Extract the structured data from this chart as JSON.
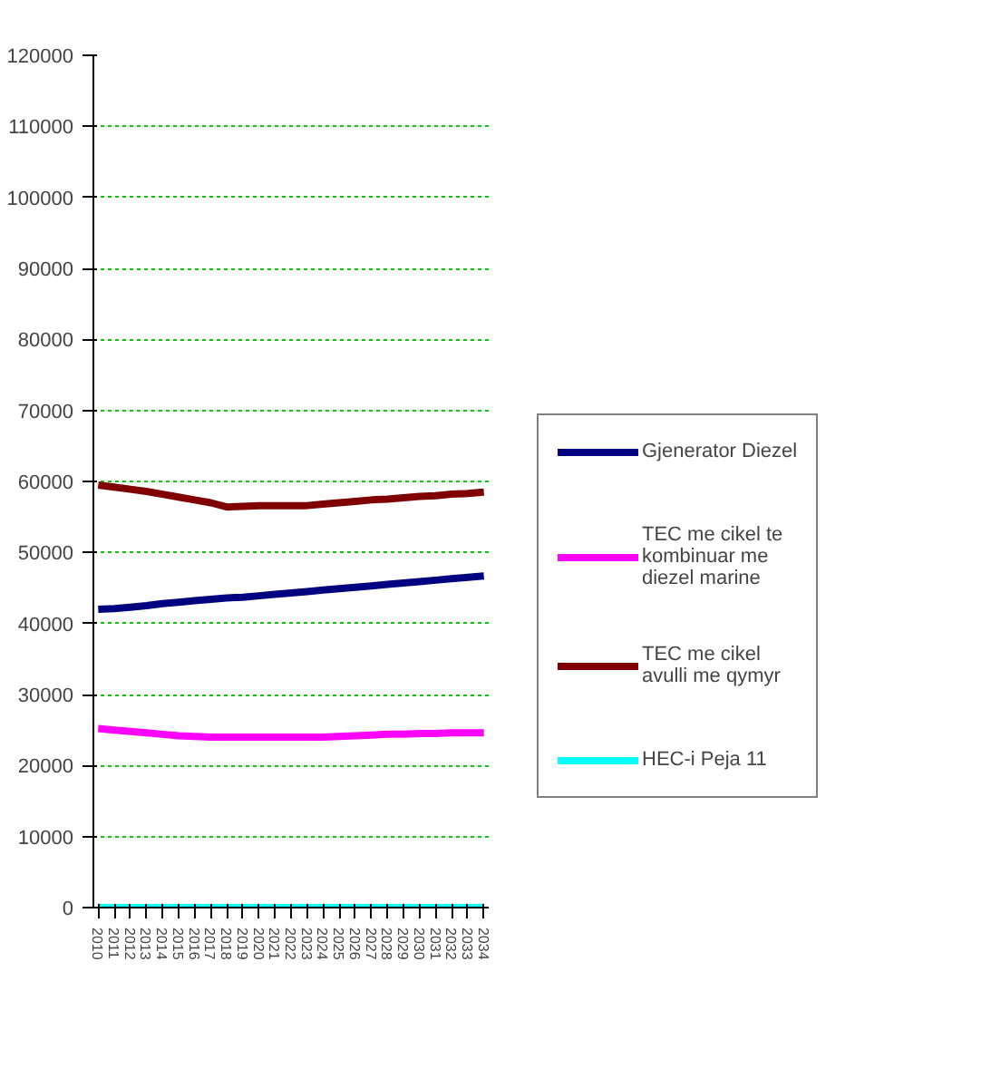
{
  "chart_data": {
    "type": "line",
    "categories": [
      "2010",
      "2011",
      "2012",
      "2013",
      "2014",
      "2015",
      "2016",
      "2017",
      "2018",
      "2019",
      "2020",
      "2021",
      "2022",
      "2023",
      "2024",
      "2025",
      "2026",
      "2027",
      "2028",
      "2029",
      "2030",
      "2031",
      "2032",
      "2033",
      "2034"
    ],
    "series": [
      {
        "name": "Gjenerator Diezel",
        "color": "#000080",
        "values": [
          42000,
          42100,
          42300,
          42500,
          42800,
          43000,
          43200,
          43400,
          43600,
          43700,
          43900,
          44100,
          44300,
          44500,
          44700,
          44900,
          45100,
          45300,
          45500,
          45700,
          45900,
          46100,
          46300,
          46500,
          46700
        ]
      },
      {
        "name": "TEC me cikel te kombinuar me diezel marine",
        "color": "#ff00ff",
        "values": [
          25200,
          25000,
          24800,
          24600,
          24400,
          24200,
          24100,
          24000,
          24000,
          24000,
          24000,
          24000,
          24000,
          24000,
          24000,
          24100,
          24200,
          24300,
          24400,
          24400,
          24500,
          24500,
          24600,
          24600,
          24600
        ]
      },
      {
        "name": "TEC me cikel avulli me qymyr",
        "color": "#800000",
        "values": [
          59500,
          59200,
          58900,
          58600,
          58200,
          57800,
          57400,
          57000,
          56400,
          56500,
          56600,
          56600,
          56600,
          56600,
          56800,
          57000,
          57200,
          57400,
          57500,
          57700,
          57900,
          58000,
          58200,
          58300,
          58500
        ]
      },
      {
        "name": "HEC-i Peja 11",
        "color": "#00ffff",
        "values": [
          0,
          0,
          0,
          0,
          0,
          0,
          0,
          0,
          0,
          0,
          0,
          0,
          0,
          0,
          0,
          0,
          0,
          0,
          0,
          0,
          0,
          0,
          0,
          0,
          0
        ]
      }
    ],
    "ylim": [
      0,
      120000
    ],
    "yticks": [
      0,
      10000,
      20000,
      30000,
      40000,
      50000,
      60000,
      70000,
      80000,
      90000,
      100000,
      110000,
      120000
    ],
    "grid": "y",
    "legend": "right",
    "line_style": "solid",
    "marker": "none"
  }
}
